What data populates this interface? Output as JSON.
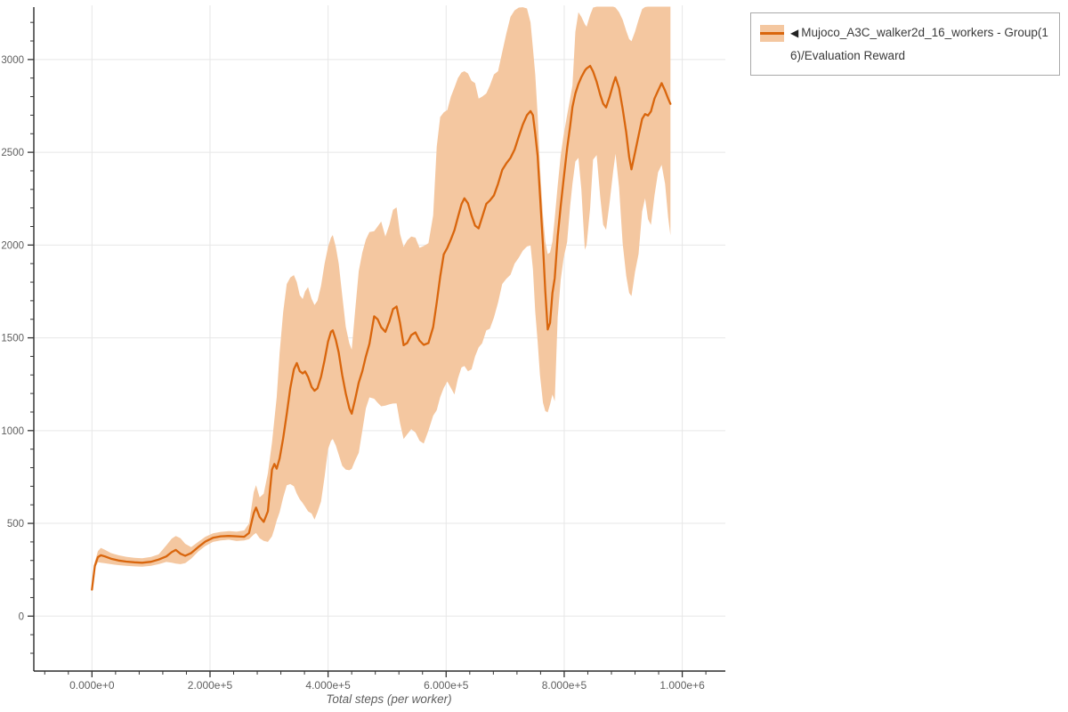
{
  "legend": {
    "marker": "◀",
    "label": "Mujoco_A3C_walker2d_16_workers - Group(16)/Evaluation Reward"
  },
  "colors": {
    "line": "#d9660d",
    "band": "#f4c7a0",
    "grid": "#e7e7e7",
    "spine": "#2b2b2b",
    "tick": "#333333",
    "tick_text": "#5f5f5f",
    "legend_border": "#a9a9a9",
    "legend_text": "#3a3a3a"
  },
  "axes": {
    "x_label": "Total steps (per worker)",
    "x_ticks": [
      {
        "value": 0,
        "label": "0.000e+0"
      },
      {
        "value": 200000,
        "label": "2.000e+5"
      },
      {
        "value": 400000,
        "label": "4.000e+5"
      },
      {
        "value": 600000,
        "label": "6.000e+5"
      },
      {
        "value": 800000,
        "label": "8.000e+5"
      },
      {
        "value": 1000000,
        "label": "1.000e+6"
      }
    ],
    "y_ticks": [
      {
        "value": 0,
        "label": "0"
      },
      {
        "value": 500,
        "label": "500"
      },
      {
        "value": 1000,
        "label": "1000"
      },
      {
        "value": 1500,
        "label": "1500"
      },
      {
        "value": 2000,
        "label": "2000"
      },
      {
        "value": 2500,
        "label": "2500"
      },
      {
        "value": 3000,
        "label": "3000"
      }
    ],
    "x_minor": {
      "start": -80000,
      "end": 1040000,
      "step": 40000
    },
    "y_minor": {
      "start": -200,
      "end": 3200,
      "step": 100
    }
  },
  "chart_data": {
    "type": "line",
    "title": "",
    "xlabel": "Total steps (per worker)",
    "ylabel": "",
    "legend_position": "top-right",
    "grid": true,
    "xlim": [
      -98500,
      1073000
    ],
    "ylim": [
      -296,
      3292
    ],
    "series_name": "Mujoco_A3C_walker2d_16_workers - Group(16)/Evaluation Reward",
    "band_meaning": "shaded min/max band around mean evaluation reward",
    "points_format": [
      "steps",
      "mean",
      "lower",
      "upper"
    ],
    "points": [
      [
        0,
        143,
        143,
        143
      ],
      [
        5000,
        272,
        258,
        292
      ],
      [
        10000,
        318,
        290,
        350
      ],
      [
        15000,
        328,
        288,
        368
      ],
      [
        22000,
        322,
        285,
        358
      ],
      [
        32000,
        310,
        280,
        340
      ],
      [
        45000,
        300,
        275,
        328
      ],
      [
        58000,
        294,
        271,
        320
      ],
      [
        72000,
        290,
        268,
        314
      ],
      [
        85000,
        288,
        266,
        312
      ],
      [
        100000,
        293,
        271,
        319
      ],
      [
        113000,
        305,
        280,
        333
      ],
      [
        126000,
        322,
        292,
        382
      ],
      [
        135000,
        345,
        288,
        418
      ],
      [
        142000,
        357,
        283,
        432
      ],
      [
        150000,
        336,
        280,
        420
      ],
      [
        158000,
        325,
        286,
        390
      ],
      [
        168000,
        340,
        310,
        372
      ],
      [
        180000,
        372,
        348,
        400
      ],
      [
        192000,
        402,
        378,
        428
      ],
      [
        205000,
        422,
        400,
        446
      ],
      [
        218000,
        430,
        408,
        454
      ],
      [
        232000,
        432,
        412,
        458
      ],
      [
        245000,
        430,
        405,
        455
      ],
      [
        258000,
        428,
        408,
        462
      ],
      [
        266000,
        448,
        415,
        500
      ],
      [
        274000,
        555,
        440,
        668
      ],
      [
        278000,
        585,
        448,
        706
      ],
      [
        284000,
        535,
        420,
        640
      ],
      [
        291000,
        508,
        406,
        660
      ],
      [
        298000,
        565,
        400,
        770
      ],
      [
        305000,
        790,
        430,
        935
      ],
      [
        309000,
        820,
        470,
        1060
      ],
      [
        313000,
        795,
        515,
        1180
      ],
      [
        318000,
        850,
        560,
        1420
      ],
      [
        324000,
        960,
        640,
        1640
      ],
      [
        330000,
        1090,
        705,
        1790
      ],
      [
        336000,
        1230,
        712,
        1825
      ],
      [
        342000,
        1330,
        700,
        1838
      ],
      [
        347000,
        1364,
        660,
        1800
      ],
      [
        352000,
        1320,
        630,
        1730
      ],
      [
        357000,
        1308,
        609,
        1709
      ],
      [
        361000,
        1319,
        590,
        1750
      ],
      [
        366000,
        1290,
        565,
        1774
      ],
      [
        372000,
        1235,
        553,
        1710
      ],
      [
        377000,
        1215,
        521,
        1677
      ],
      [
        382000,
        1228,
        560,
        1700
      ],
      [
        388000,
        1290,
        618,
        1780
      ],
      [
        394000,
        1380,
        750,
        1900
      ],
      [
        400000,
        1480,
        900,
        1990
      ],
      [
        405000,
        1533,
        945,
        2040
      ],
      [
        408000,
        1540,
        955,
        2054
      ],
      [
        413000,
        1490,
        920,
        1990
      ],
      [
        418000,
        1420,
        870,
        1900
      ],
      [
        424000,
        1300,
        810,
        1730
      ],
      [
        430000,
        1200,
        790,
        1560
      ],
      [
        436000,
        1120,
        786,
        1470
      ],
      [
        440000,
        1091,
        794,
        1436
      ],
      [
        446000,
        1170,
        840,
        1650
      ],
      [
        452000,
        1259,
        880,
        1860
      ],
      [
        458000,
        1320,
        1000,
        1960
      ],
      [
        464000,
        1400,
        1120,
        2030
      ],
      [
        470000,
        1468,
        1179,
        2070
      ],
      [
        478000,
        1616,
        1172,
        2075
      ],
      [
        484000,
        1600,
        1150,
        2100
      ],
      [
        490000,
        1557,
        1131,
        2127
      ],
      [
        497000,
        1532,
        1135,
        2046
      ],
      [
        504000,
        1590,
        1142,
        2110
      ],
      [
        510000,
        1655,
        1146,
        2190
      ],
      [
        516000,
        1669,
        1147,
        2203
      ],
      [
        522000,
        1580,
        1040,
        2060
      ],
      [
        528000,
        1460,
        955,
        1990
      ],
      [
        534000,
        1472,
        980,
        2025
      ],
      [
        541000,
        1515,
        1008,
        2046
      ],
      [
        548000,
        1529,
        990,
        2040
      ],
      [
        555000,
        1485,
        945,
        1985
      ],
      [
        562000,
        1462,
        930,
        1995
      ],
      [
        570000,
        1472,
        1000,
        2010
      ],
      [
        578000,
        1558,
        1080,
        2160
      ],
      [
        584000,
        1690,
        1110,
        2530
      ],
      [
        590000,
        1830,
        1180,
        2690
      ],
      [
        596000,
        1950,
        1230,
        2715
      ],
      [
        602000,
        1985,
        1265,
        2728
      ],
      [
        608000,
        2030,
        1230,
        2800
      ],
      [
        614000,
        2080,
        1195,
        2849
      ],
      [
        620000,
        2150,
        1280,
        2900
      ],
      [
        626000,
        2220,
        1340,
        2930
      ],
      [
        631000,
        2252,
        1348,
        2937
      ],
      [
        637000,
        2225,
        1320,
        2925
      ],
      [
        643000,
        2160,
        1330,
        2885
      ],
      [
        649000,
        2105,
        1400,
        2873
      ],
      [
        655000,
        2090,
        1448,
        2790
      ],
      [
        661000,
        2150,
        1470,
        2800
      ],
      [
        668000,
        2222,
        1540,
        2817
      ],
      [
        674000,
        2240,
        1549,
        2860
      ],
      [
        681000,
        2268,
        1610,
        2920
      ],
      [
        688000,
        2330,
        1690,
        2937
      ],
      [
        695000,
        2405,
        1790,
        3040
      ],
      [
        702000,
        2440,
        1818,
        3140
      ],
      [
        709000,
        2470,
        1840,
        3230
      ],
      [
        716000,
        2515,
        1900,
        3265
      ],
      [
        723000,
        2585,
        1932,
        3280
      ],
      [
        730000,
        2650,
        1970,
        3282
      ],
      [
        737000,
        2700,
        1992,
        3275
      ],
      [
        743000,
        2722,
        1998,
        3200
      ],
      [
        747000,
        2700,
        1870,
        3060
      ],
      [
        751000,
        2600,
        1640,
        2920
      ],
      [
        755000,
        2480,
        1480,
        2700
      ],
      [
        759000,
        2271,
        1300,
        2420
      ],
      [
        764000,
        1998,
        1150,
        2160
      ],
      [
        768000,
        1750,
        1105,
        2020
      ],
      [
        772000,
        1545,
        1099,
        1952
      ],
      [
        776000,
        1580,
        1140,
        1960
      ],
      [
        780000,
        1741,
        1195,
        2020
      ],
      [
        784000,
        1822,
        1158,
        2145
      ],
      [
        789000,
        2046,
        1610,
        2320
      ],
      [
        794000,
        2210,
        1812,
        2482
      ],
      [
        799000,
        2355,
        1930,
        2594
      ],
      [
        805000,
        2520,
        2016,
        2700
      ],
      [
        810000,
        2640,
        2210,
        2790
      ],
      [
        814000,
        2744,
        2330,
        2860
      ],
      [
        819000,
        2817,
        2450,
        3150
      ],
      [
        824000,
        2868,
        2470,
        3255
      ],
      [
        829000,
        2905,
        2300,
        3230
      ],
      [
        835000,
        2940,
        1975,
        3190
      ],
      [
        838000,
        2952,
        2000,
        3177
      ],
      [
        844000,
        2966,
        2200,
        3240
      ],
      [
        849000,
        2935,
        2460,
        3280
      ],
      [
        855000,
        2880,
        2485,
        3285
      ],
      [
        861000,
        2810,
        2260,
        3285
      ],
      [
        866000,
        2762,
        2110,
        3285
      ],
      [
        871000,
        2742,
        2082,
        3285
      ],
      [
        877000,
        2800,
        2230,
        3285
      ],
      [
        883000,
        2868,
        2400,
        3285
      ],
      [
        887000,
        2905,
        2492,
        3280
      ],
      [
        893000,
        2845,
        2310,
        3255
      ],
      [
        899000,
        2735,
        2010,
        3215
      ],
      [
        905000,
        2608,
        1835,
        3155
      ],
      [
        910000,
        2475,
        1742,
        3110
      ],
      [
        914000,
        2408,
        1725,
        3098
      ],
      [
        920000,
        2498,
        1855,
        3150
      ],
      [
        926000,
        2590,
        1952,
        3215
      ],
      [
        932000,
        2680,
        2180,
        3272
      ],
      [
        937000,
        2706,
        2252,
        3283
      ],
      [
        942000,
        2698,
        2140,
        3285
      ],
      [
        947000,
        2720,
        2108,
        3285
      ],
      [
        953000,
        2790,
        2268,
        3285
      ],
      [
        959000,
        2832,
        2392,
        3285
      ],
      [
        965000,
        2873,
        2432,
        3285
      ],
      [
        971000,
        2832,
        2330,
        3285
      ],
      [
        976000,
        2790,
        2150,
        3285
      ],
      [
        980000,
        2761,
        2052,
        3285
      ]
    ]
  }
}
